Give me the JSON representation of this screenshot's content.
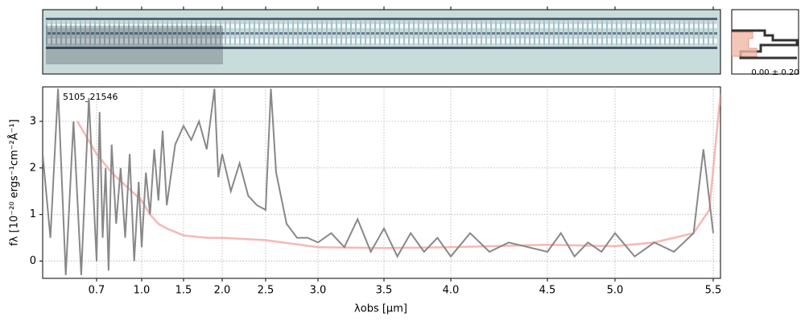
{
  "chart_data": {
    "type": "line",
    "annotation": "5105_21546",
    "side_label": "0.00 ± 0.20",
    "xlabel": "λobs [μm]",
    "ylabel": "fλ [10⁻²⁰ ergs⁻¹cm⁻²Å⁻¹]",
    "xlim": [
      0.56,
      5.52
    ],
    "ylim": [
      -0.37,
      3.74
    ],
    "xticks": [
      0.7,
      {
        "value": 1,
        "label": "1.0"
      },
      1.5,
      {
        "value": 2,
        "label": "2.0"
      },
      2.5,
      {
        "value": 3,
        "label": "3.0"
      },
      3.5,
      {
        "value": 4,
        "label": "4.0"
      },
      4.5,
      {
        "value": 5,
        "label": "5.0"
      },
      5.5
    ],
    "yticks": [
      0,
      1,
      2,
      3
    ],
    "grid": true,
    "series": [
      {
        "color": "#888888",
        "x": [
          0.56,
          0.58,
          0.6,
          0.62,
          0.64,
          0.66,
          0.68,
          0.7,
          0.72,
          0.74,
          0.76,
          0.78,
          0.8,
          0.83,
          0.86,
          0.89,
          0.92,
          0.95,
          0.98,
          1.0,
          1.05,
          1.1,
          1.15,
          1.2,
          1.25,
          1.3,
          1.4,
          1.5,
          1.6,
          1.7,
          1.8,
          1.9,
          1.95,
          2.0,
          2.1,
          2.2,
          2.3,
          2.4,
          2.5,
          2.55,
          2.6,
          2.7,
          2.8,
          2.9,
          3.0,
          3.1,
          3.2,
          3.3,
          3.4,
          3.5,
          3.6,
          3.7,
          3.8,
          3.9,
          4.0,
          4.1,
          4.2,
          4.3,
          4.4,
          4.5,
          4.6,
          4.7,
          4.8,
          4.9,
          5.0,
          5.1,
          5.2,
          5.3,
          5.4,
          5.45,
          5.5
        ],
        "values": [
          2.3,
          0.5,
          3.7,
          -0.3,
          3.0,
          -0.3,
          3.5,
          0.0,
          3.2,
          0.5,
          2.0,
          -0.2,
          2.5,
          0.8,
          2.0,
          0.5,
          2.3,
          0.0,
          1.7,
          0.3,
          1.9,
          1.0,
          2.4,
          1.3,
          2.8,
          1.2,
          2.5,
          2.9,
          2.6,
          3.0,
          2.4,
          3.7,
          1.8,
          2.3,
          1.5,
          2.1,
          1.4,
          1.2,
          1.1,
          3.7,
          1.9,
          0.8,
          0.5,
          0.5,
          0.4,
          0.6,
          0.3,
          0.9,
          0.2,
          0.7,
          0.1,
          0.6,
          0.2,
          0.5,
          0.1,
          0.6,
          0.2,
          0.4,
          0.3,
          0.2,
          0.6,
          0.1,
          0.4,
          0.2,
          0.6,
          0.1,
          0.4,
          0.2,
          0.6,
          2.4,
          0.6
        ]
      },
      {
        "color": "#f4a6a0",
        "x": [
          0.65,
          0.7,
          0.8,
          0.9,
          1.0,
          1.1,
          1.2,
          1.3,
          1.5,
          1.8,
          2.0,
          2.5,
          3.0,
          3.5,
          4.0,
          4.5,
          5.0,
          5.2,
          5.3,
          5.4,
          5.48,
          5.52
        ],
        "values": [
          3.0,
          2.3,
          1.9,
          1.6,
          1.3,
          1.0,
          0.8,
          0.7,
          0.55,
          0.5,
          0.5,
          0.45,
          0.3,
          0.28,
          0.3,
          0.35,
          0.32,
          0.4,
          0.5,
          0.6,
          1.1,
          3.6
        ]
      }
    ]
  }
}
